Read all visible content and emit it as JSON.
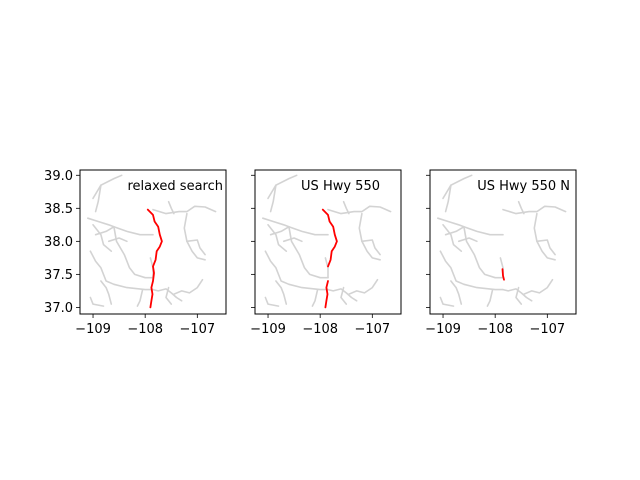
{
  "chart_data": {
    "type": "line",
    "xlim": [
      -109.25,
      -106.45
    ],
    "ylim": [
      36.9,
      39.08
    ],
    "xticks": [
      -109,
      -108,
      -107
    ],
    "xtick_labels": [
      "−109",
      "−108",
      "−107"
    ],
    "yticks": [
      37.0,
      37.5,
      38.0,
      38.5,
      39.0
    ],
    "ytick_labels": [
      "37.0",
      "37.5",
      "38.0",
      "38.5",
      "39.0"
    ],
    "grid": false,
    "road_color": "#d3d3d3",
    "highlight_color": "#ff0000",
    "background_roads": [
      [
        [
          -109.0,
          38.65
        ],
        [
          -108.85,
          38.85
        ],
        [
          -108.6,
          38.95
        ],
        [
          -108.45,
          39.0
        ]
      ],
      [
        [
          -108.85,
          38.85
        ],
        [
          -108.9,
          38.6
        ],
        [
          -108.95,
          38.45
        ]
      ],
      [
        [
          -109.1,
          38.35
        ],
        [
          -108.9,
          38.3
        ],
        [
          -108.7,
          38.25
        ],
        [
          -108.6,
          38.22
        ],
        [
          -108.35,
          38.15
        ],
        [
          -108.1,
          38.1
        ],
        [
          -107.85,
          38.1
        ]
      ],
      [
        [
          -109.05,
          37.85
        ],
        [
          -108.95,
          37.7
        ],
        [
          -108.85,
          37.6
        ],
        [
          -108.75,
          37.4
        ],
        [
          -108.6,
          37.35
        ],
        [
          -108.35,
          37.3
        ],
        [
          -108.0,
          37.27
        ],
        [
          -107.85,
          37.27
        ]
      ],
      [
        [
          -108.6,
          38.22
        ],
        [
          -108.55,
          38.0
        ],
        [
          -108.4,
          37.8
        ],
        [
          -108.3,
          37.6
        ],
        [
          -108.2,
          37.5
        ],
        [
          -108.0,
          37.45
        ],
        [
          -107.85,
          37.45
        ]
      ],
      [
        [
          -108.7,
          38.0
        ],
        [
          -108.5,
          38.05
        ],
        [
          -108.35,
          38.0
        ]
      ],
      [
        [
          -108.95,
          38.1
        ],
        [
          -108.75,
          38.15
        ],
        [
          -108.6,
          38.22
        ]
      ],
      [
        [
          -109.0,
          38.25
        ],
        [
          -108.85,
          38.1
        ],
        [
          -108.8,
          37.95
        ],
        [
          -108.65,
          37.85
        ]
      ],
      [
        [
          -107.85,
          38.48
        ],
        [
          -107.6,
          38.42
        ],
        [
          -107.35,
          38.45
        ],
        [
          -107.2,
          38.45
        ],
        [
          -107.05,
          38.53
        ],
        [
          -106.85,
          38.52
        ],
        [
          -106.65,
          38.45
        ]
      ],
      [
        [
          -107.55,
          38.6
        ],
        [
          -107.5,
          38.5
        ],
        [
          -107.45,
          38.42
        ]
      ],
      [
        [
          -107.2,
          38.42
        ],
        [
          -107.25,
          38.2
        ],
        [
          -107.2,
          38.0
        ],
        [
          -107.1,
          37.85
        ],
        [
          -107.0,
          37.75
        ],
        [
          -106.85,
          37.72
        ]
      ],
      [
        [
          -107.2,
          38.0
        ],
        [
          -107.0,
          38.02
        ],
        [
          -106.95,
          37.9
        ],
        [
          -106.85,
          37.8
        ]
      ],
      [
        [
          -107.85,
          37.27
        ],
        [
          -107.75,
          37.25
        ],
        [
          -107.6,
          37.28
        ],
        [
          -107.5,
          37.22
        ],
        [
          -107.4,
          37.15
        ],
        [
          -107.3,
          37.1
        ]
      ],
      [
        [
          -107.55,
          37.3
        ],
        [
          -107.6,
          37.15
        ],
        [
          -107.5,
          37.05
        ]
      ],
      [
        [
          -107.45,
          37.2
        ],
        [
          -107.3,
          37.25
        ],
        [
          -107.15,
          37.22
        ],
        [
          -107.0,
          37.3
        ],
        [
          -106.9,
          37.42
        ]
      ],
      [
        [
          -108.05,
          37.27
        ],
        [
          -108.1,
          37.1
        ],
        [
          -108.15,
          37.02
        ]
      ],
      [
        [
          -108.85,
          37.4
        ],
        [
          -108.75,
          37.3
        ],
        [
          -108.7,
          37.2
        ],
        [
          -108.65,
          37.05
        ]
      ],
      [
        [
          -109.05,
          37.15
        ],
        [
          -109.0,
          37.05
        ],
        [
          -108.8,
          37.02
        ]
      ],
      [
        [
          -107.85,
          37.45
        ],
        [
          -107.85,
          37.6
        ],
        [
          -107.9,
          37.75
        ]
      ]
    ],
    "panels": [
      {
        "title": "relaxed search",
        "series": [
          {
            "points": [
              [
                -107.95,
                38.48
              ],
              [
                -107.85,
                38.4
              ],
              [
                -107.82,
                38.3
              ],
              [
                -107.75,
                38.22
              ],
              [
                -107.72,
                38.1
              ],
              [
                -107.68,
                38.0
              ],
              [
                -107.72,
                37.92
              ],
              [
                -107.78,
                37.85
              ],
              [
                -107.8,
                37.72
              ],
              [
                -107.85,
                37.62
              ],
              [
                -107.83,
                37.52
              ],
              [
                -107.85,
                37.4
              ],
              [
                -107.88,
                37.3
              ],
              [
                -107.86,
                37.2
              ],
              [
                -107.88,
                37.1
              ],
              [
                -107.9,
                37.0
              ]
            ]
          }
        ]
      },
      {
        "title": "US Hwy 550",
        "series": [
          {
            "points": [
              [
                -107.95,
                38.48
              ],
              [
                -107.85,
                38.4
              ],
              [
                -107.82,
                38.3
              ],
              [
                -107.75,
                38.22
              ],
              [
                -107.72,
                38.1
              ],
              [
                -107.68,
                38.0
              ],
              [
                -107.72,
                37.92
              ],
              [
                -107.78,
                37.85
              ],
              [
                -107.8,
                37.72
              ],
              [
                -107.85,
                37.62
              ]
            ]
          },
          {
            "points": [
              [
                -107.85,
                37.4
              ],
              [
                -107.88,
                37.3
              ],
              [
                -107.86,
                37.2
              ],
              [
                -107.88,
                37.1
              ],
              [
                -107.9,
                37.0
              ]
            ]
          }
        ]
      },
      {
        "title": "US Hwy 550 N",
        "series": [
          {
            "points": [
              [
                -107.86,
                37.58
              ],
              [
                -107.85,
                37.48
              ],
              [
                -107.83,
                37.42
              ]
            ]
          }
        ]
      }
    ]
  }
}
